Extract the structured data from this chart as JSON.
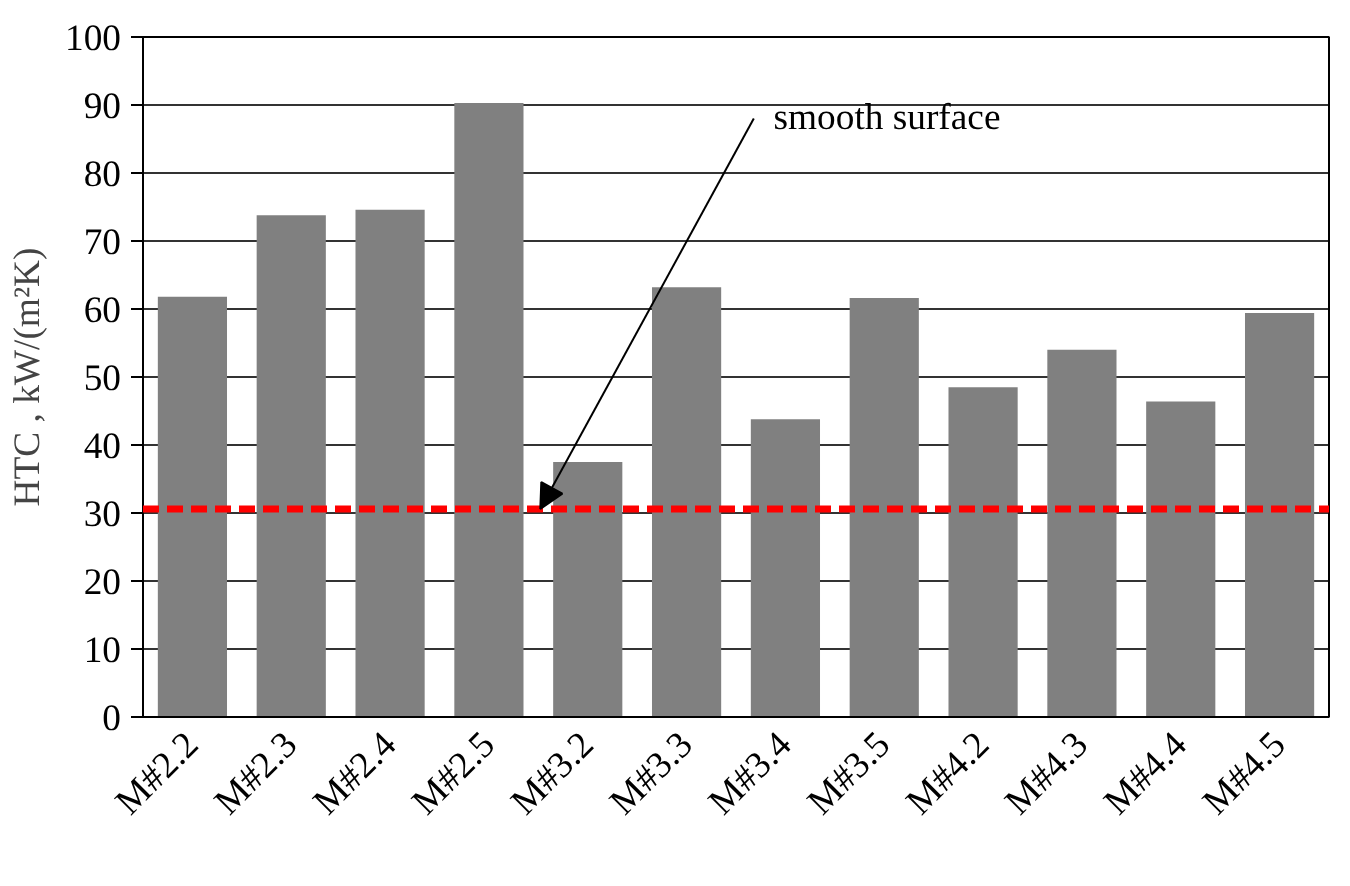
{
  "chart_data": {
    "type": "bar",
    "ylabel": "HTC , kW/(m²K)",
    "categories": [
      "M#2.2",
      "M#2.3",
      "M#2.4",
      "M#2.5",
      "M#3.2",
      "M#3.3",
      "M#3.4",
      "M#3.5",
      "M#4.2",
      "M#4.3",
      "M#4.4",
      "M#4.5"
    ],
    "values": [
      61.8,
      73.8,
      74.6,
      90.3,
      37.5,
      63.2,
      43.8,
      61.6,
      48.5,
      54.0,
      46.4,
      59.4
    ],
    "color": "#808080",
    "ylim": [
      0,
      100
    ],
    "yticks": [
      0,
      10,
      20,
      30,
      40,
      50,
      60,
      70,
      80,
      90,
      100
    ],
    "grid": "y",
    "ref_lines": [
      {
        "axis": "y",
        "value": 30.6,
        "label": "smooth surface",
        "color": "#ff0000",
        "line_style": "dashed"
      }
    ]
  }
}
